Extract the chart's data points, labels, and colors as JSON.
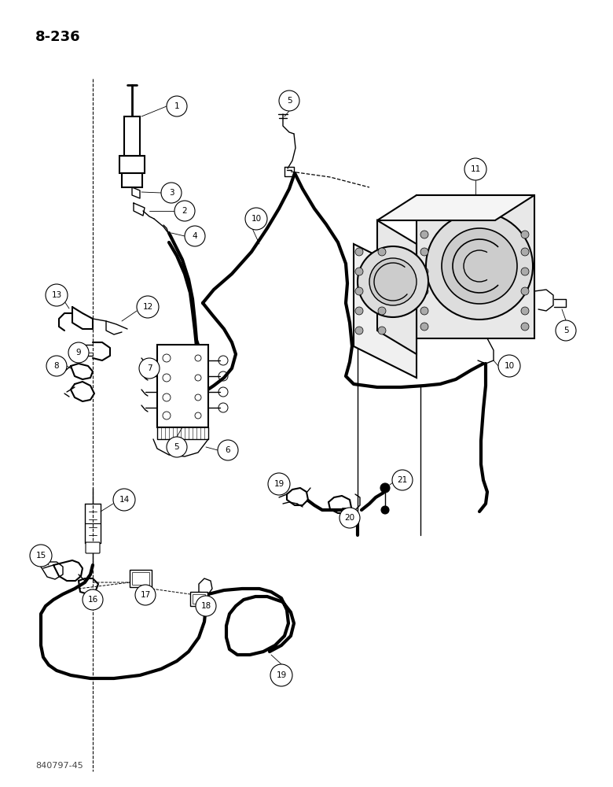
{
  "page_label": "8-236",
  "footer_label": "840797-45",
  "bg_color": "#ffffff",
  "line_color": "#000000",
  "title_fontsize": 13,
  "footer_fontsize": 8,
  "label_fontsize": 7.5,
  "circle_r": 0.016,
  "lw_thick": 3.0,
  "lw_med": 1.5,
  "lw_thin": 1.0,
  "lw_comp": 0.8
}
